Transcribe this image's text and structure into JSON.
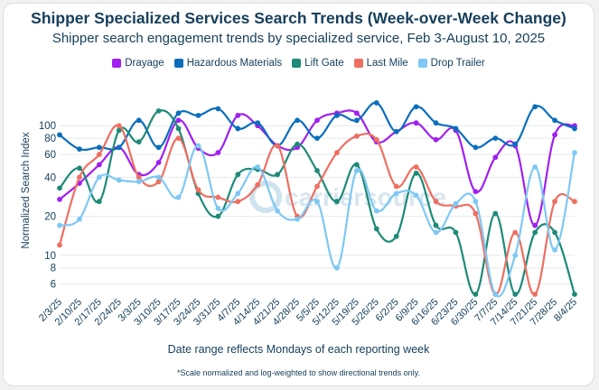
{
  "chart_data": {
    "type": "line",
    "title": "Shipper Specialized Services Search Trends (Week-over-Week Change)",
    "subtitle": "Shipper search engagement trends by specialized service, Feb 3-August 10, 2025",
    "xlabel": "Date range reflects Mondays of each reporting week",
    "ylabel": "Normalized Search Index",
    "footnote": "*Scale normalized and log-weighted to show directional trends only.",
    "yscale": "log",
    "ylim": [
      5,
      200
    ],
    "yticks": [
      6,
      8,
      10,
      20,
      40,
      60,
      80,
      100
    ],
    "ytick_labels": [
      "6",
      "8",
      "10",
      "20",
      "40",
      "60",
      "80",
      "100"
    ],
    "watermark": "carriersource",
    "categories": [
      "2/3/25",
      "2/10/25",
      "2/17/25",
      "2/24/25",
      "3/3/25",
      "3/10/25",
      "3/17/25",
      "3/24/25",
      "3/31/25",
      "4/7/25",
      "4/14/25",
      "4/21/25",
      "4/28/25",
      "5/5/25",
      "5/12/25",
      "5/19/25",
      "5/26/25",
      "6/2/25",
      "6/9/25",
      "6/16/25",
      "6/23/25",
      "6/30/25",
      "7/7/25",
      "7/14/25",
      "7/21/25",
      "7/28/25",
      "8/4/25"
    ],
    "series": [
      {
        "name": "Drayage",
        "color": "#a020f0",
        "values": [
          27,
          36,
          50,
          68,
          42,
          52,
          110,
          67,
          62,
          120,
          100,
          70,
          68,
          110,
          125,
          125,
          75,
          90,
          105,
          78,
          92,
          31,
          57,
          70,
          17,
          85,
          100
        ]
      },
      {
        "name": "Hazardous Materials",
        "color": "#0a6ebd",
        "values": [
          85,
          66,
          68,
          68,
          110,
          68,
          125,
          120,
          135,
          95,
          105,
          70,
          110,
          80,
          120,
          110,
          150,
          90,
          140,
          105,
          95,
          68,
          80,
          72,
          140,
          110,
          95
        ]
      },
      {
        "name": "Lift Gate",
        "color": "#1e8a78",
        "values": [
          33,
          47,
          26,
          92,
          75,
          130,
          95,
          30,
          20,
          42,
          46,
          42,
          72,
          45,
          26,
          50,
          16,
          14,
          43,
          17,
          15,
          5,
          21,
          5,
          15,
          15,
          5
        ]
      },
      {
        "name": "Last Mile",
        "color": "#ee6f61",
        "values": [
          12,
          40,
          60,
          100,
          40,
          37,
          80,
          32,
          28,
          26,
          35,
          70,
          20,
          34,
          62,
          83,
          78,
          34,
          48,
          26,
          24,
          21,
          5,
          15,
          5,
          26,
          26
        ]
      },
      {
        "name": "Drop Trailer",
        "color": "#7ec8f4",
        "values": [
          17,
          19,
          40,
          38,
          37,
          40,
          28,
          70,
          23,
          30,
          48,
          22,
          19,
          26,
          8,
          45,
          22,
          30,
          29,
          15,
          25,
          26,
          5,
          10,
          48,
          11,
          62
        ]
      }
    ]
  }
}
